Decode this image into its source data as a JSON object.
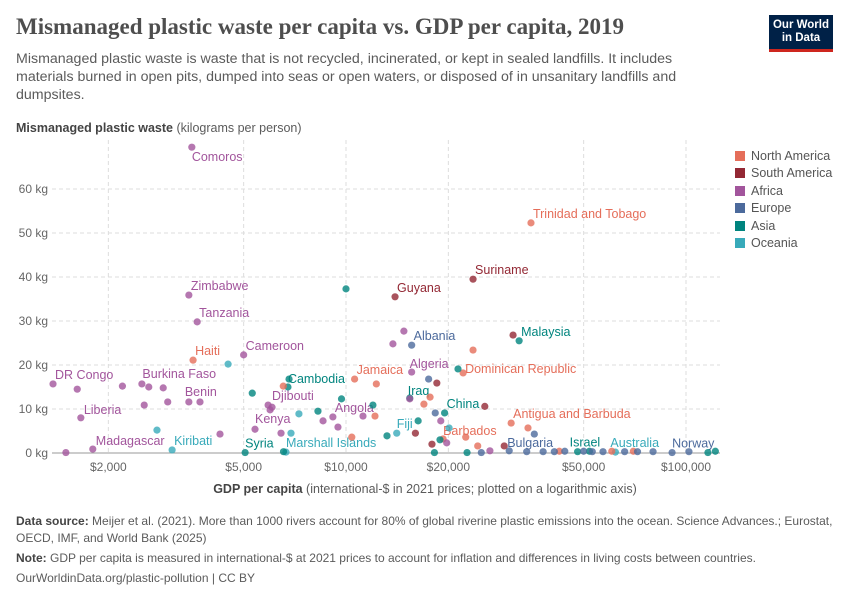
{
  "header": {
    "title": "Mismanaged plastic waste per capita vs. GDP per capita, 2019",
    "subtitle": "Mismanaged plastic waste is waste that is not recycled, incinerated, or kept in sealed landfills. It includes materials burned in open pits, dumped into seas or open waters, or disposed of in unsanitary landfills and dumpsites.",
    "logo": "Our World in Data"
  },
  "footer": {
    "source_label": "Data source:",
    "source": "Meijer et al. (2021). More than 1000 rivers account for 80% of global riverine plastic emissions into the ocean. Science Advances.; Eurostat, OECD, IMF, and World Bank (2025)",
    "note_label": "Note:",
    "note": "GDP per capita is measured in international-$ at 2021 prices to account for inflation and differences in living costs between countries.",
    "url": "OurWorldinData.org/plastic-pollution | CC BY"
  },
  "chart_data": {
    "type": "scatter",
    "title": "Mismanaged plastic waste per capita vs. GDP per capita, 2019",
    "ylabel_bold": "Mismanaged plastic waste",
    "ylabel_rest": " (kilograms per person)",
    "xlabel_bold": "GDP per capita",
    "xlabel_rest": " (international-$ in 2021 prices; plotted on a logarithmic axis)",
    "x_scale": "log",
    "xlim": [
      1300,
      125000
    ],
    "ylim": [
      0,
      70
    ],
    "grid": true,
    "legend_position": "right",
    "xticks": [
      {
        "v": 2000,
        "label": "$2,000"
      },
      {
        "v": 5000,
        "label": "$5,000"
      },
      {
        "v": 10000,
        "label": "$10,000"
      },
      {
        "v": 20000,
        "label": "$20,000"
      },
      {
        "v": 50000,
        "label": "$50,000"
      },
      {
        "v": 100000,
        "label": "$100,000"
      }
    ],
    "yticks": [
      {
        "v": 0,
        "label": "0 kg"
      },
      {
        "v": 10,
        "label": "10 kg"
      },
      {
        "v": 20,
        "label": "20 kg"
      },
      {
        "v": 30,
        "label": "30 kg"
      },
      {
        "v": 40,
        "label": "40 kg"
      },
      {
        "v": 50,
        "label": "50 kg"
      },
      {
        "v": 60,
        "label": "60 kg"
      }
    ],
    "regions": [
      {
        "name": "North America",
        "color": "#e56e5a"
      },
      {
        "name": "South America",
        "color": "#932834"
      },
      {
        "name": "Africa",
        "color": "#a2559c"
      },
      {
        "name": "Europe",
        "color": "#4c6a9c"
      },
      {
        "name": "Asia",
        "color": "#00847e"
      },
      {
        "name": "Oceania",
        "color": "#38aaba"
      }
    ],
    "points": [
      {
        "name": "Comoros",
        "region": "Africa",
        "gdp": 3520,
        "waste": 69.5,
        "label": true
      },
      {
        "name": "Zimbabwe",
        "region": "Africa",
        "gdp": 3450,
        "waste": 35.9,
        "label": true
      },
      {
        "name": "Tanzania",
        "region": "Africa",
        "gdp": 3650,
        "waste": 29.8,
        "label": true
      },
      {
        "name": "Haiti",
        "region": "North America",
        "gdp": 3550,
        "waste": 21.1,
        "label": true
      },
      {
        "name": "Cameroon",
        "region": "Africa",
        "gdp": 5000,
        "waste": 22.3,
        "label": true
      },
      {
        "name": "DR Congo",
        "region": "Africa",
        "gdp": 1375,
        "waste": 15.7,
        "label": true
      },
      {
        "name": "Burkina Faso",
        "region": "Africa",
        "gdp": 2200,
        "waste": 15.2,
        "label": true
      },
      {
        "name": "Benin",
        "region": "Africa",
        "gdp": 3450,
        "waste": 11.6,
        "label": true
      },
      {
        "name": "Liberia",
        "region": "Africa",
        "gdp": 1660,
        "waste": 8.0,
        "label": true
      },
      {
        "name": "Madagascar",
        "region": "Africa",
        "gdp": 1800,
        "waste": 0.9,
        "label": true
      },
      {
        "name": "Kiribati",
        "region": "Oceania",
        "gdp": 3080,
        "waste": 0.7,
        "label": true
      },
      {
        "name": "Syria",
        "region": "Asia",
        "gdp": 5050,
        "waste": 0.1,
        "label": true
      },
      {
        "name": "Marshall Islands",
        "region": "Oceania",
        "gdp": 6660,
        "waste": 0.2,
        "label": true
      },
      {
        "name": "Kenya",
        "region": "Africa",
        "gdp": 5400,
        "waste": 5.4,
        "label": true
      },
      {
        "name": "Djibouti",
        "region": "Africa",
        "gdp": 6060,
        "waste": 10.4,
        "label": true
      },
      {
        "name": "Cambodia",
        "region": "Asia",
        "gdp": 6750,
        "waste": 15.0,
        "label": true
      },
      {
        "name": "Angola",
        "region": "Africa",
        "gdp": 9150,
        "waste": 8.2,
        "label": true
      },
      {
        "name": "Jamaica",
        "region": "North America",
        "gdp": 10600,
        "waste": 16.8,
        "label": true
      },
      {
        "name": "Guyana",
        "region": "South America",
        "gdp": 13940,
        "waste": 35.5,
        "label": true
      },
      {
        "name": "Suriname",
        "region": "South America",
        "gdp": 23640,
        "waste": 39.5,
        "label": true
      },
      {
        "name": "Trinidad and Tobago",
        "region": "North America",
        "gdp": 35000,
        "waste": 52.3,
        "label": true
      },
      {
        "name": "Malaysia",
        "region": "Asia",
        "gdp": 32300,
        "waste": 25.5,
        "label": true
      },
      {
        "name": "Albania",
        "region": "Europe",
        "gdp": 15600,
        "waste": 24.5,
        "label": true
      },
      {
        "name": "Algeria",
        "region": "Africa",
        "gdp": 15600,
        "waste": 18.4,
        "label": true
      },
      {
        "name": "Dominican Republic",
        "region": "North America",
        "gdp": 22100,
        "waste": 18.2,
        "label": true
      },
      {
        "name": "Iraq",
        "region": "Asia",
        "gdp": 15400,
        "waste": 12.5,
        "label": true
      },
      {
        "name": "China",
        "region": "Asia",
        "gdp": 19500,
        "waste": 9.1,
        "label": true
      },
      {
        "name": "Fiji",
        "region": "Oceania",
        "gdp": 14100,
        "waste": 4.5,
        "label": true
      },
      {
        "name": "Barbados",
        "region": "North America",
        "gdp": 19300,
        "waste": 3.2,
        "label": true
      },
      {
        "name": "Antigua and Barbuda",
        "region": "North America",
        "gdp": 30600,
        "waste": 6.8,
        "label": true
      },
      {
        "name": "Bulgaria",
        "region": "Europe",
        "gdp": 30200,
        "waste": 0.5,
        "label": true
      },
      {
        "name": "Israel",
        "region": "Asia",
        "gdp": 48000,
        "waste": 0.3,
        "label": true
      },
      {
        "name": "Australia",
        "region": "Oceania",
        "gdp": 62000,
        "waste": 0.2,
        "label": true
      },
      {
        "name": "Norway",
        "region": "Europe",
        "gdp": 91000,
        "waste": 0.1,
        "label": true
      },
      {
        "region": "Africa",
        "gdp": 1620,
        "waste": 14.5
      },
      {
        "region": "Africa",
        "gdp": 2510,
        "waste": 15.7
      },
      {
        "region": "Africa",
        "gdp": 2630,
        "waste": 15.0
      },
      {
        "region": "Africa",
        "gdp": 2900,
        "waste": 14.8
      },
      {
        "region": "Africa",
        "gdp": 2550,
        "waste": 10.9
      },
      {
        "region": "Africa",
        "gdp": 2990,
        "waste": 11.6
      },
      {
        "region": "Africa",
        "gdp": 3720,
        "waste": 11.6
      },
      {
        "region": "Africa",
        "gdp": 4260,
        "waste": 4.3
      },
      {
        "region": "Africa",
        "gdp": 5900,
        "waste": 10.9
      },
      {
        "region": "Africa",
        "gdp": 5980,
        "waste": 9.8
      },
      {
        "region": "Africa",
        "gdp": 6440,
        "waste": 4.5
      },
      {
        "region": "Africa",
        "gdp": 8560,
        "waste": 7.3
      },
      {
        "region": "Africa",
        "gdp": 9470,
        "waste": 5.9
      },
      {
        "region": "Africa",
        "gdp": 11220,
        "waste": 8.4
      },
      {
        "region": "Africa",
        "gdp": 14800,
        "waste": 27.7
      },
      {
        "region": "Africa",
        "gdp": 13740,
        "waste": 24.8
      },
      {
        "region": "Africa",
        "gdp": 15400,
        "waste": 12.3
      },
      {
        "region": "Africa",
        "gdp": 19000,
        "waste": 7.3
      },
      {
        "region": "Africa",
        "gdp": 19780,
        "waste": 2.3
      },
      {
        "region": "Africa",
        "gdp": 26500,
        "waste": 0.5
      },
      {
        "region": "Africa",
        "gdp": 1500,
        "waste": 0.1
      },
      {
        "region": "Asia",
        "gdp": 10000,
        "waste": 37.3
      },
      {
        "region": "Asia",
        "gdp": 5300,
        "waste": 13.6
      },
      {
        "region": "Asia",
        "gdp": 6800,
        "waste": 16.8
      },
      {
        "region": "Asia",
        "gdp": 8270,
        "waste": 9.5
      },
      {
        "region": "Asia",
        "gdp": 9700,
        "waste": 12.3
      },
      {
        "region": "Asia",
        "gdp": 12000,
        "waste": 10.9
      },
      {
        "region": "Asia",
        "gdp": 13200,
        "waste": 3.9
      },
      {
        "region": "Asia",
        "gdp": 16300,
        "waste": 7.3
      },
      {
        "region": "Asia",
        "gdp": 18900,
        "waste": 3.0
      },
      {
        "region": "Asia",
        "gdp": 21350,
        "waste": 19.1
      },
      {
        "region": "Asia",
        "gdp": 18200,
        "waste": 0.1
      },
      {
        "region": "Asia",
        "gdp": 22700,
        "waste": 0.1
      },
      {
        "region": "Asia",
        "gdp": 116000,
        "waste": 0.1
      },
      {
        "region": "Asia",
        "gdp": 122000,
        "waste": 0.4
      },
      {
        "region": "Asia",
        "gdp": 6550,
        "waste": 0.3
      },
      {
        "region": "Asia",
        "gdp": 52000,
        "waste": 0.4
      },
      {
        "region": "Oceania",
        "gdp": 2780,
        "waste": 5.2
      },
      {
        "region": "Oceania",
        "gdp": 4500,
        "waste": 20.2
      },
      {
        "region": "Oceania",
        "gdp": 7270,
        "waste": 8.9
      },
      {
        "region": "Oceania",
        "gdp": 6890,
        "waste": 4.5
      },
      {
        "region": "Oceania",
        "gdp": 20100,
        "waste": 5.7
      },
      {
        "region": "North America",
        "gdp": 6540,
        "waste": 15.2
      },
      {
        "region": "North America",
        "gdp": 12170,
        "waste": 8.4
      },
      {
        "region": "North America",
        "gdp": 12280,
        "waste": 15.7
      },
      {
        "region": "North America",
        "gdp": 10400,
        "waste": 3.6
      },
      {
        "region": "North America",
        "gdp": 16950,
        "waste": 11.1
      },
      {
        "region": "North America",
        "gdp": 17670,
        "waste": 12.7
      },
      {
        "region": "North America",
        "gdp": 23640,
        "waste": 23.4
      },
      {
        "region": "North America",
        "gdp": 22500,
        "waste": 3.6
      },
      {
        "region": "North America",
        "gdp": 24400,
        "waste": 1.6
      },
      {
        "region": "North America",
        "gdp": 34300,
        "waste": 5.7
      },
      {
        "region": "North America",
        "gdp": 42400,
        "waste": 0.4
      },
      {
        "region": "North America",
        "gdp": 60500,
        "waste": 0.4
      },
      {
        "region": "North America",
        "gdp": 70000,
        "waste": 0.4
      },
      {
        "region": "South America",
        "gdp": 18500,
        "waste": 15.9
      },
      {
        "region": "South America",
        "gdp": 25600,
        "waste": 10.6
      },
      {
        "region": "South America",
        "gdp": 16000,
        "waste": 4.5
      },
      {
        "region": "South America",
        "gdp": 17900,
        "waste": 2.0
      },
      {
        "region": "South America",
        "gdp": 29200,
        "waste": 1.6
      },
      {
        "region": "South America",
        "gdp": 31000,
        "waste": 26.8
      },
      {
        "region": "Europe",
        "gdp": 17500,
        "waste": 16.8
      },
      {
        "region": "Europe",
        "gdp": 18300,
        "waste": 9.1
      },
      {
        "region": "Europe",
        "gdp": 35800,
        "waste": 4.3
      },
      {
        "region": "Europe",
        "gdp": 34000,
        "waste": 0.3
      },
      {
        "region": "Europe",
        "gdp": 38000,
        "waste": 0.3
      },
      {
        "region": "Europe",
        "gdp": 41000,
        "waste": 0.3
      },
      {
        "region": "Europe",
        "gdp": 44000,
        "waste": 0.4
      },
      {
        "region": "Europe",
        "gdp": 50000,
        "waste": 0.4
      },
      {
        "region": "Europe",
        "gdp": 53000,
        "waste": 0.3
      },
      {
        "region": "Europe",
        "gdp": 57000,
        "waste": 0.3
      },
      {
        "region": "Europe",
        "gdp": 66000,
        "waste": 0.3
      },
      {
        "region": "Europe",
        "gdp": 72000,
        "waste": 0.3
      },
      {
        "region": "Europe",
        "gdp": 80000,
        "waste": 0.3
      },
      {
        "region": "Europe",
        "gdp": 102000,
        "waste": 0.3
      },
      {
        "region": "Europe",
        "gdp": 25000,
        "waste": 0.1
      }
    ]
  }
}
